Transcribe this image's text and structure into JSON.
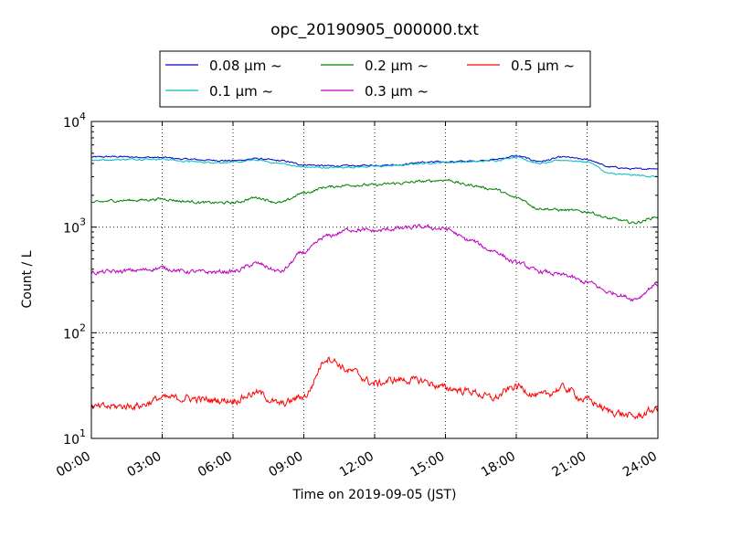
{
  "chart_data": {
    "type": "line",
    "title": "opc_20190905_000000.txt",
    "xlabel": "Time on 2019-09-05 (JST)",
    "ylabel": "Count / L",
    "y_scale": "log",
    "ylim": [
      10,
      10000
    ],
    "xlim": [
      "00:00",
      "24:00"
    ],
    "x_ticks": [
      "00:00",
      "03:00",
      "06:00",
      "09:00",
      "12:00",
      "15:00",
      "18:00",
      "21:00",
      "24:00"
    ],
    "y_ticks": [
      {
        "base": "10",
        "exp": "1"
      },
      {
        "base": "10",
        "exp": "2"
      },
      {
        "base": "10",
        "exp": "3"
      },
      {
        "base": "10",
        "exp": "4"
      }
    ],
    "grid": true,
    "legend_position": "top",
    "x": [
      "00:00",
      "01:00",
      "02:00",
      "03:00",
      "04:00",
      "05:00",
      "06:00",
      "07:00",
      "08:00",
      "09:00",
      "10:00",
      "11:00",
      "12:00",
      "13:00",
      "14:00",
      "15:00",
      "16:00",
      "17:00",
      "18:00",
      "19:00",
      "20:00",
      "21:00",
      "22:00",
      "23:00",
      "24:00"
    ],
    "series": [
      {
        "name": "0.08 μm ~",
        "color": "#0000cc",
        "values": [
          4600,
          4650,
          4600,
          4550,
          4400,
          4300,
          4250,
          4450,
          4250,
          3900,
          3800,
          3800,
          3850,
          3900,
          4100,
          4150,
          4200,
          4350,
          4700,
          4200,
          4600,
          4350,
          3700,
          3550,
          3600
        ]
      },
      {
        "name": "0.1 μm ~",
        "color": "#00bfbf",
        "values": [
          4300,
          4350,
          4400,
          4400,
          4200,
          4100,
          4100,
          4300,
          4000,
          3700,
          3650,
          3700,
          3750,
          3850,
          4000,
          4100,
          4150,
          4250,
          4600,
          4000,
          4300,
          4150,
          3200,
          3100,
          3000
        ]
      },
      {
        "name": "0.2 μm ~",
        "color": "#008000",
        "values": [
          1700,
          1780,
          1800,
          1850,
          1750,
          1700,
          1700,
          1900,
          1700,
          2100,
          2400,
          2500,
          2500,
          2600,
          2700,
          2800,
          2500,
          2300,
          1900,
          1500,
          1450,
          1400,
          1200,
          1100,
          1250
        ]
      },
      {
        "name": "0.3 μm ~",
        "color": "#bf00bf",
        "values": [
          370,
          380,
          390,
          410,
          380,
          375,
          380,
          450,
          380,
          580,
          820,
          950,
          920,
          970,
          1000,
          960,
          750,
          600,
          460,
          380,
          350,
          300,
          240,
          210,
          290
        ]
      },
      {
        "name": "0.5 μm ~",
        "color": "#ff0000",
        "values": [
          19.5,
          20,
          20.5,
          24,
          24,
          23,
          23,
          27,
          21,
          25,
          58,
          43,
          33,
          36,
          35,
          30,
          28,
          24,
          31,
          25,
          30,
          23,
          18,
          16,
          19
        ]
      }
    ]
  }
}
